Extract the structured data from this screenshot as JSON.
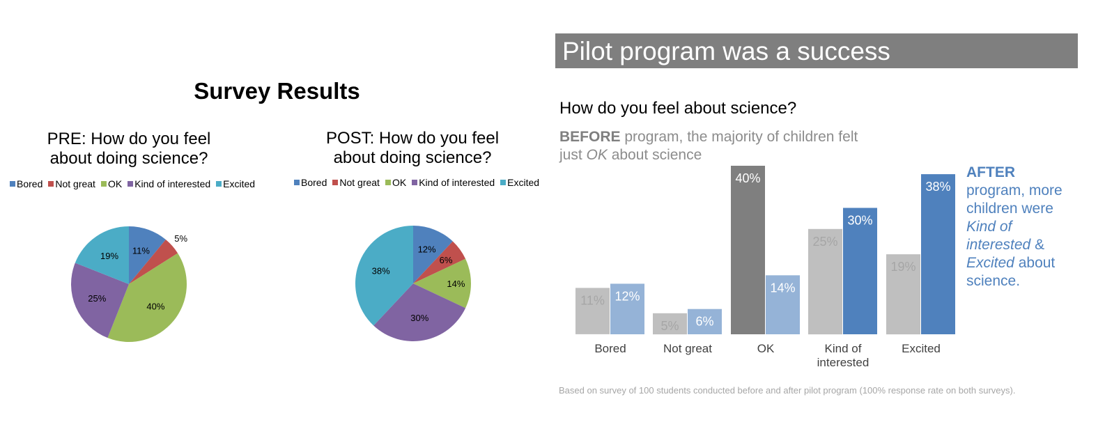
{
  "left_panel": {
    "title": "Survey Results",
    "pre": {
      "title_line1": "PRE: How do you feel",
      "title_line2": "about doing science?"
    },
    "post": {
      "title_line1": "POST: How do you feel",
      "title_line2": "about doing science?"
    }
  },
  "right_panel": {
    "banner_title": "Pilot program was a success",
    "question": "How do you feel about science?",
    "before_note": {
      "bold": "BEFORE",
      "text1": " program, the majority of children felt",
      "text2": "just ",
      "italic": "OK",
      "text3": " about science"
    },
    "after_note": {
      "bold": "AFTER",
      "line1": "program, more",
      "line2": "children were",
      "italic1": "Kind of",
      "italic2": "interested",
      "amp": " &",
      "italic3": "Excited",
      "about": " about",
      "end": "science."
    },
    "footnote": "Based on survey of 100 students conducted before and after pilot program (100% response rate on both surveys)."
  },
  "chart_data": [
    {
      "type": "pie",
      "title": "PRE: How do you feel about doing science?",
      "categories": [
        "Bored",
        "Not great",
        "OK",
        "Kind of interested",
        "Excited"
      ],
      "values": [
        11,
        5,
        40,
        25,
        19
      ],
      "labels": [
        "11%",
        "5%",
        "40%",
        "25%",
        "19%"
      ],
      "colors": [
        "#4f81bd",
        "#c0504d",
        "#9bbb59",
        "#8064a2",
        "#4bacc6"
      ],
      "legend": "top"
    },
    {
      "type": "pie",
      "title": "POST: How do you feel about doing science?",
      "categories": [
        "Bored",
        "Not great",
        "OK",
        "Kind of interested",
        "Excited"
      ],
      "values": [
        12,
        6,
        14,
        30,
        38
      ],
      "labels": [
        "12%",
        "6%",
        "14%",
        "30%",
        "38%"
      ],
      "colors": [
        "#4f81bd",
        "#c0504d",
        "#9bbb59",
        "#8064a2",
        "#4bacc6"
      ],
      "legend": "top"
    },
    {
      "type": "bar",
      "title": "How do you feel about science?",
      "categories": [
        "Bored",
        "Not great",
        "OK",
        "Kind of\ninterested",
        "Excited"
      ],
      "series": [
        {
          "values": [
            11,
            5,
            40,
            25,
            19
          ],
          "labels": [
            "11%",
            "5%",
            "40%",
            "25%",
            "19%"
          ],
          "colors": [
            "#bfbfbf",
            "#bfbfbf",
            "#7f7f7f",
            "#bfbfbf",
            "#bfbfbf"
          ],
          "label_colors": [
            "#a6a6a6",
            "#a6a6a6",
            "#ffffff",
            "#a6a6a6",
            "#a6a6a6"
          ]
        },
        {
          "values": [
            12,
            6,
            14,
            30,
            38
          ],
          "labels": [
            "12%",
            "6%",
            "14%",
            "30%",
            "38%"
          ],
          "colors": [
            "#95b3d7",
            "#95b3d7",
            "#95b3d7",
            "#4f81bd",
            "#4f81bd"
          ],
          "label_colors": [
            "#ffffff",
            "#ffffff",
            "#ffffff",
            "#ffffff",
            "#ffffff"
          ]
        }
      ],
      "ylim": [
        0,
        40
      ],
      "grid": false,
      "legend": "none"
    }
  ]
}
